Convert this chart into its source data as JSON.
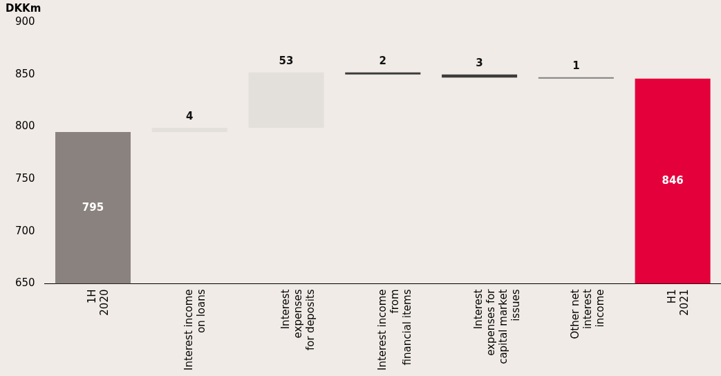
{
  "chart_data": {
    "type": "bar",
    "ylabel": "DKKm",
    "categories": [
      "1H\n2020",
      "Interest income\non loans",
      "Interest\nexpenses\nfor deposits",
      "Interest income\nfrom\nfinancial items",
      "Interest\nexpenses for\ncapital market\nissues",
      "Other net\ninterest\nincome",
      "H1\n2021"
    ],
    "values": [
      795,
      4,
      53,
      -2,
      -3,
      -1,
      846
    ],
    "base": [
      null,
      795,
      799,
      852,
      850,
      847,
      null
    ],
    "value_labels": [
      "795",
      "4",
      "53",
      "2",
      "3",
      "1",
      "846"
    ],
    "colors": [
      "#8a827e",
      "#e3dfdb",
      "#e3dfdb",
      "#3c3c3c",
      "#3c3c3c",
      "#808080",
      "#e4003a"
    ],
    "ylim": [
      650,
      900
    ],
    "yticks": [
      650,
      700,
      750,
      800,
      850,
      900
    ],
    "grid": false,
    "legend": false
  }
}
